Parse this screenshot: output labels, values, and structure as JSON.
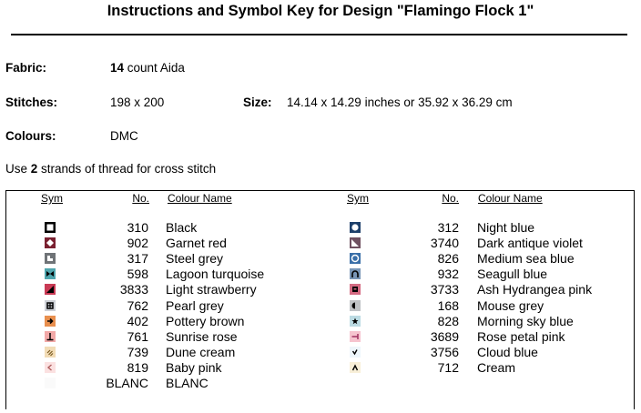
{
  "title": "Instructions and Symbol Key for Design \"Flamingo Flock 1\"",
  "fabric": {
    "label": "Fabric:",
    "count": "14",
    "rest": " count Aida"
  },
  "stitches": {
    "label": "Stitches:",
    "value": "198 x 200"
  },
  "size": {
    "label": "Size:",
    "value": "14.14 x 14.29 inches or 35.92 x 36.29 cm"
  },
  "colours": {
    "label": "Colours:",
    "value": "DMC"
  },
  "instruction": {
    "pre": "Use ",
    "strands": "2",
    "post": " strands of thread for cross stitch"
  },
  "table": {
    "headers": {
      "sym": "Sym",
      "no": "No.",
      "name": "Colour Name"
    },
    "left": [
      {
        "no": "310",
        "name": "Black",
        "bg": "#000000",
        "fg": "#ffffff",
        "icon": "square-outline-icon"
      },
      {
        "no": "902",
        "name": "Garnet red",
        "bg": "#7a2030",
        "fg": "#ffffff",
        "icon": "diamond-icon"
      },
      {
        "no": "317",
        "name": "Steel grey",
        "bg": "#6f7377",
        "fg": "#ffffff",
        "icon": "corner-icon"
      },
      {
        "no": "598",
        "name": "Lagoon turquoise",
        "bg": "#4fa5ad",
        "fg": "#000000",
        "icon": "bowtie-icon"
      },
      {
        "no": "3833",
        "name": "Light strawberry",
        "bg": "#c93a55",
        "fg": "#000000",
        "icon": "triangle-half-icon"
      },
      {
        "no": "762",
        "name": "Pearl grey",
        "bg": "#cdd0d6",
        "fg": "#000000",
        "icon": "cross-box-icon"
      },
      {
        "no": "402",
        "name": "Pottery brown",
        "bg": "#e88f4e",
        "fg": "#000000",
        "icon": "arrow-right-icon"
      },
      {
        "no": "761",
        "name": "Sunrise rose",
        "bg": "#f2a9a8",
        "fg": "#000000",
        "icon": "inverted-t-icon"
      },
      {
        "no": "739",
        "name": "Dune cream",
        "bg": "#f2dcb6",
        "fg": "#7a5a20",
        "icon": "hatch-icon"
      },
      {
        "no": "819",
        "name": "Baby pink",
        "bg": "#fbe1e1",
        "fg": "#b06060",
        "icon": "chevron-left-icon"
      },
      {
        "no": "BLANC",
        "name": "BLANC",
        "bg": "#fafafa",
        "fg": "#ffffff",
        "icon": "blank-icon"
      }
    ],
    "right": [
      {
        "no": "312",
        "name": "Night blue",
        "bg": "#1d3f6a",
        "fg": "#ffffff",
        "icon": "circle-icon"
      },
      {
        "no": "3740",
        "name": "Dark antique violet",
        "bg": "#6f5060",
        "fg": "#ffffff",
        "icon": "triangle-corner-icon"
      },
      {
        "no": "826",
        "name": "Medium sea blue",
        "bg": "#3a6fa8",
        "fg": "#ffffff",
        "icon": "circle-outline-icon"
      },
      {
        "no": "932",
        "name": "Seagull blue",
        "bg": "#7895b5",
        "fg": "#000000",
        "icon": "arch-icon"
      },
      {
        "no": "3733",
        "name": "Ash Hydrangea pink",
        "bg": "#d46a82",
        "fg": "#000000",
        "icon": "window-icon"
      },
      {
        "no": "168",
        "name": "Mouse grey",
        "bg": "#c0c3c6",
        "fg": "#000000",
        "icon": "half-circle-icon"
      },
      {
        "no": "828",
        "name": "Morning sky blue",
        "bg": "#bcdbe3",
        "fg": "#000000",
        "icon": "star-icon"
      },
      {
        "no": "3689",
        "name": "Rose petal pink",
        "bg": "#f6c4cf",
        "fg": "#a03060",
        "icon": "t-right-icon"
      },
      {
        "no": "3756",
        "name": "Cloud blue",
        "bg": "#eef6fb",
        "fg": "#000000",
        "icon": "check-icon"
      },
      {
        "no": "712",
        "name": "Cream",
        "bg": "#f8efd8",
        "fg": "#000000",
        "icon": "caret-icon"
      }
    ]
  }
}
